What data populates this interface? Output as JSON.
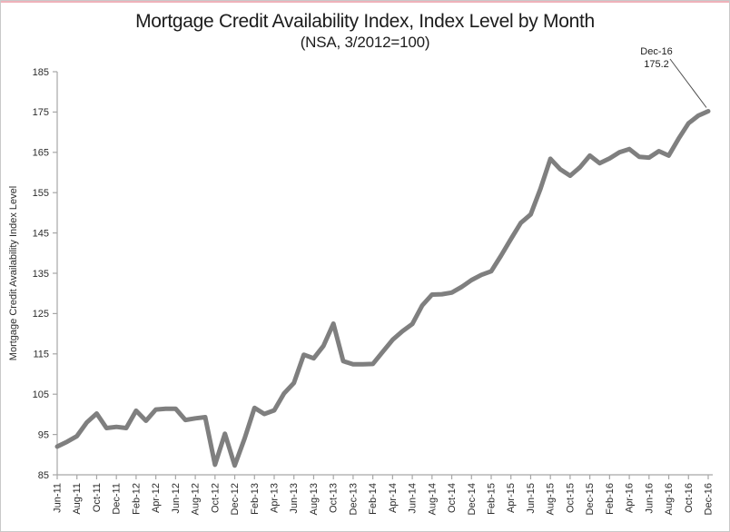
{
  "page": {
    "accent_color": "#efb2ba",
    "border_color": "#c9c9c9",
    "background": "#ffffff"
  },
  "chart_data": {
    "type": "line",
    "title": "Mortgage Credit Availability Index, Index Level by Month",
    "subtitle": "(NSA, 3/2012=100)",
    "ylabel": "Mortgage Credit Availability Index Level",
    "xlabel": "",
    "ylim": [
      85,
      185
    ],
    "ytick_step": 10,
    "yticks": [
      85,
      95,
      105,
      115,
      125,
      135,
      145,
      155,
      165,
      175,
      185
    ],
    "grid": false,
    "legend": "none",
    "x_tick_label_every": 2,
    "line_color": "#7f7f7f",
    "line_width": 5,
    "axis_color": "#a6a6a6",
    "tick_text_color": "#2b2b2b",
    "x": [
      "Jun-11",
      "Jul-11",
      "Aug-11",
      "Sep-11",
      "Oct-11",
      "Nov-11",
      "Dec-11",
      "Jan-12",
      "Feb-12",
      "Mar-12",
      "Apr-12",
      "May-12",
      "Jun-12",
      "Jul-12",
      "Aug-12",
      "Sep-12",
      "Oct-12",
      "Nov-12",
      "Dec-12",
      "Jan-13",
      "Feb-13",
      "Mar-13",
      "Apr-13",
      "May-13",
      "Jun-13",
      "Jul-13",
      "Aug-13",
      "Sep-13",
      "Oct-13",
      "Nov-13",
      "Dec-13",
      "Jan-14",
      "Feb-14",
      "Mar-14",
      "Apr-14",
      "May-14",
      "Jun-14",
      "Jul-14",
      "Aug-14",
      "Sep-14",
      "Oct-14",
      "Nov-14",
      "Dec-14",
      "Jan-15",
      "Feb-15",
      "Mar-15",
      "Apr-15",
      "May-15",
      "Jun-15",
      "Jul-15",
      "Aug-15",
      "Sep-15",
      "Oct-15",
      "Nov-15",
      "Dec-15",
      "Jan-16",
      "Feb-16",
      "Mar-16",
      "Apr-16",
      "May-16",
      "Jun-16",
      "Jul-16",
      "Aug-16",
      "Sep-16",
      "Oct-16",
      "Nov-16",
      "Dec-16"
    ],
    "values": [
      92.0,
      93.2,
      94.6,
      98.0,
      100.2,
      96.6,
      96.9,
      96.6,
      100.9,
      98.4,
      101.2,
      101.4,
      101.4,
      98.6,
      99.0,
      99.3,
      87.5,
      95.2,
      87.3,
      94.0,
      101.6,
      100.1,
      101.0,
      105.2,
      107.8,
      114.8,
      113.9,
      117.0,
      122.5,
      113.2,
      112.4,
      112.4,
      112.5,
      115.5,
      118.5,
      120.6,
      122.4,
      127.0,
      129.7,
      129.8,
      130.2,
      131.6,
      133.3,
      134.6,
      135.5,
      139.4,
      143.5,
      147.5,
      149.6,
      156.0,
      163.4,
      160.8,
      159.2,
      161.3,
      164.2,
      162.3,
      163.5,
      165.0,
      165.8,
      163.9,
      163.7,
      165.3,
      164.2,
      168.4,
      172.2,
      174.1,
      175.2
    ],
    "annotation": {
      "label": "Dec-16",
      "value_label": "175.2",
      "target_month": "Dec-16",
      "target_value": 175.2,
      "leader_color": "#4d4d4d"
    }
  }
}
